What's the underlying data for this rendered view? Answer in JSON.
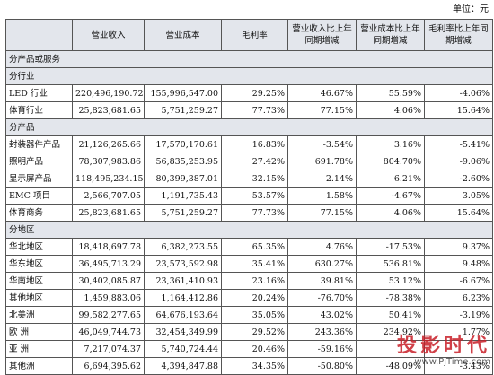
{
  "unit": "单位：元",
  "headers": [
    "",
    "营业收入",
    "营业成本",
    "毛利率",
    "营业收入比上年同期增减",
    "营业成本比上年同期增减",
    "毛利率比上年同期增减"
  ],
  "rows": [
    {
      "type": "section",
      "label": "分产品或服务"
    },
    {
      "type": "section",
      "label": "分行业"
    },
    {
      "type": "data",
      "cells": [
        "LED 行业",
        "220,496,190.72",
        "155,996,547.00",
        "29.25%",
        "46.67%",
        "55.59%",
        "-4.06%"
      ]
    },
    {
      "type": "data",
      "cells": [
        "体育行业",
        "25,823,681.65",
        "5,751,259.27",
        "77.73%",
        "77.15%",
        "4.06%",
        "15.64%"
      ]
    },
    {
      "type": "section",
      "label": "分产品"
    },
    {
      "type": "data",
      "cells": [
        "封装器件产品",
        "21,126,265.66",
        "17,570,170.61",
        "16.83%",
        "-3.54%",
        "3.16%",
        "-5.41%"
      ]
    },
    {
      "type": "data",
      "cells": [
        "照明产品",
        "78,307,983.86",
        "56,835,253.95",
        "27.42%",
        "691.78%",
        "804.70%",
        "-9.06%"
      ]
    },
    {
      "type": "data",
      "cells": [
        "显示屏产品",
        "118,495,234.15",
        "80,399,387.01",
        "32.15%",
        "2.14%",
        "6.21%",
        "-2.60%"
      ]
    },
    {
      "type": "data",
      "cells": [
        "EMC 项目",
        "2,566,707.05",
        "1,191,735.43",
        "53.57%",
        "1.58%",
        "-4.67%",
        "3.05%"
      ]
    },
    {
      "type": "data",
      "cells": [
        "体育商务",
        "25,823,681.65",
        "5,751,259.27",
        "77.73%",
        "77.15%",
        "4.06%",
        "15.64%"
      ]
    },
    {
      "type": "section",
      "label": "分地区"
    },
    {
      "type": "data",
      "cells": [
        "华北地区",
        "18,418,697.78",
        "6,382,273.55",
        "65.35%",
        "4.76%",
        "-17.53%",
        "9.37%"
      ]
    },
    {
      "type": "data",
      "cells": [
        "华东地区",
        "36,495,713.29",
        "23,573,592.98",
        "35.41%",
        "630.27%",
        "536.81%",
        "9.48%"
      ]
    },
    {
      "type": "data",
      "cells": [
        "华南地区",
        "30,402,085.87",
        "23,361,410.93",
        "23.16%",
        "39.81%",
        "53.12%",
        "-6.67%"
      ]
    },
    {
      "type": "data",
      "cells": [
        "其他地区",
        "1,459,883.06",
        "1,164,412.86",
        "20.24%",
        "-76.70%",
        "-78.38%",
        "6.23%"
      ]
    },
    {
      "type": "data",
      "cells": [
        "北美洲",
        "99,582,277.65",
        "64,676,193.64",
        "35.05%",
        "43.02%",
        "50.41%",
        "-3.19%"
      ]
    },
    {
      "type": "data",
      "cells": [
        "欧 洲",
        "46,049,744.73",
        "32,454,349.99",
        "29.52%",
        "243.36%",
        "234.92%",
        "1.77%"
      ]
    },
    {
      "type": "data",
      "cells": [
        "亚 洲",
        "7,217,074.37",
        "5,740,724.44",
        "20.46%",
        "-59.16%",
        "",
        ""
      ]
    },
    {
      "type": "data",
      "cells": [
        "其他洲",
        "6,694,395.62",
        "4,394,847.88",
        "34.35%",
        "-50.80%",
        "-48.09%",
        "-3.43%"
      ]
    }
  ],
  "watermark": {
    "cn": "投影时代",
    "en": "www.PjTime.com"
  }
}
